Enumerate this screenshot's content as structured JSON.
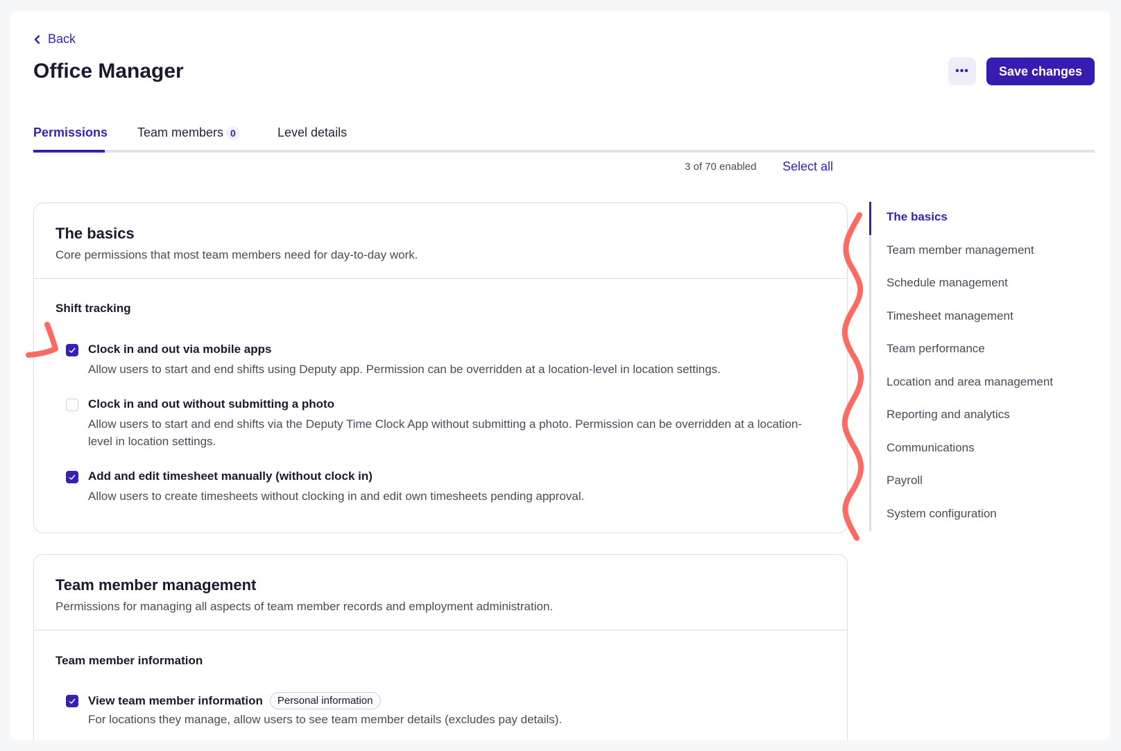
{
  "header": {
    "back_label": "Back",
    "title": "Office Manager",
    "more_icon": "ellipsis-icon",
    "save_label": "Save changes"
  },
  "tabs": [
    {
      "label": "Permissions",
      "active": true
    },
    {
      "label": "Team members",
      "badge": "0"
    },
    {
      "label": "Level details"
    }
  ],
  "summary": {
    "count_text": "3 of 70 enabled",
    "select_all_label": "Select all"
  },
  "sections": [
    {
      "title": "The basics",
      "description": "Core permissions that most team members need for day-to-day work.",
      "group": "Shift tracking",
      "items": [
        {
          "label": "Clock in and out via mobile apps",
          "description": "Allow users to start and end shifts using Deputy app. Permission can be overridden at a location-level in location settings.",
          "checked": true
        },
        {
          "label": "Clock in and out without submitting a photo",
          "description": "Allow users to start and end shifts via the Deputy Time Clock App without submitting a photo. Permission can be overridden at a location-level in location settings.",
          "checked": false
        },
        {
          "label": "Add and edit timesheet manually (without clock in)",
          "description": "Allow users to create timesheets without clocking in and edit own timesheets pending approval.",
          "checked": true
        }
      ]
    },
    {
      "title": "Team member management",
      "description": "Permissions for managing all aspects of team member records and employment administration.",
      "group": "Team member information",
      "items": [
        {
          "label": "View team member information",
          "tag": "Personal information",
          "description": "For locations they manage, allow users to see team member details (excludes pay details).",
          "checked": true
        }
      ]
    }
  ],
  "nav": {
    "active": "The basics",
    "items": [
      "The basics",
      "Team member management",
      "Schedule management",
      "Timesheet management",
      "Team performance",
      "Location and area management",
      "Reporting and analytics",
      "Communications",
      "Payroll",
      "System configuration"
    ]
  },
  "colors": {
    "accent": "#3a1fb0",
    "annotation": "#fb6b61"
  }
}
